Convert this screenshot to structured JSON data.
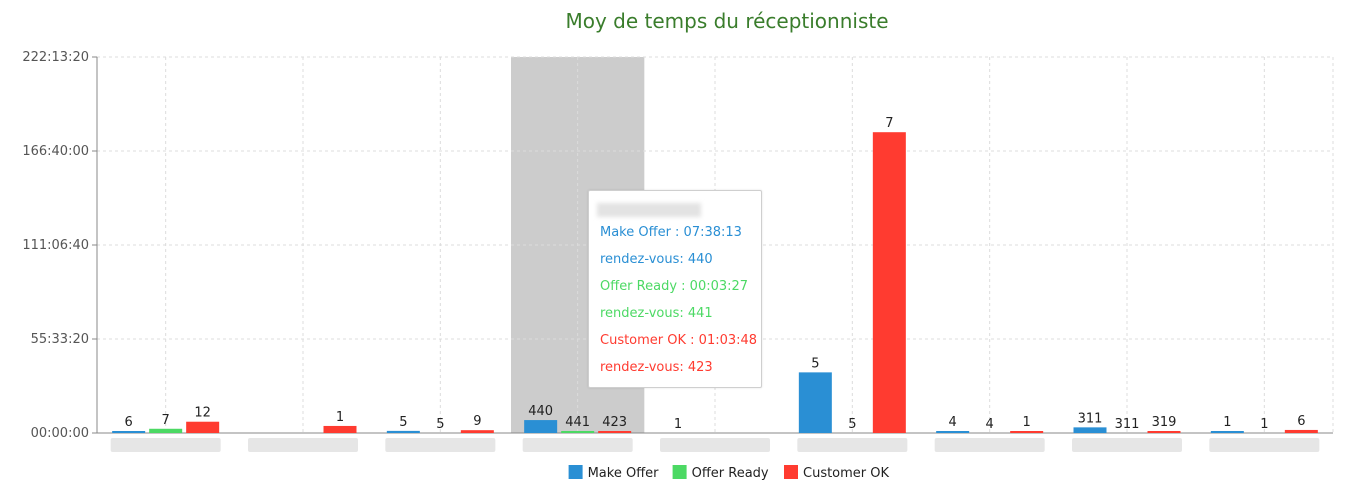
{
  "chart_data": {
    "type": "bar",
    "title": "Moy de temps du réceptionniste",
    "xlabel": "",
    "ylabel": "",
    "y_unit": "hh:mm:ss",
    "ylim_seconds": [
      0,
      800000
    ],
    "y_tick_seconds": [
      0,
      200000,
      400000,
      600000,
      800000
    ],
    "y_tick_labels": [
      "00:00:00",
      "55:33:20",
      "111:06:40",
      "166:40:00",
      "222:13:20"
    ],
    "grid": true,
    "legend_position": "bottom",
    "categories_redacted": true,
    "categories": [
      "",
      "",
      "",
      "",
      "",
      "",
      "",
      "",
      ""
    ],
    "highlighted_category_index": 3,
    "series": [
      {
        "name": "Make Offer",
        "color": "#2a8fd4",
        "values_seconds": [
          3600,
          0,
          4500,
          27493,
          0,
          129000,
          1500,
          12000,
          1200
        ],
        "data_labels": [
          "6",
          "",
          "5",
          "440",
          "1",
          "5",
          "4",
          "311",
          "1"
        ]
      },
      {
        "name": "Offer Ready",
        "color": "#4cd964",
        "values_seconds": [
          9000,
          0,
          0,
          207,
          0,
          0,
          0,
          0,
          0
        ],
        "data_labels": [
          "7",
          "",
          "5",
          "441",
          "",
          "5",
          "4",
          "311",
          "1"
        ]
      },
      {
        "name": "Customer OK",
        "color": "#ff3b30",
        "values_seconds": [
          24000,
          15000,
          6000,
          3828,
          0,
          640000,
          1800,
          3600,
          6500
        ],
        "data_labels": [
          "12",
          "1",
          "9",
          "423",
          "",
          "7",
          "1",
          "319",
          "6"
        ]
      }
    ]
  },
  "tooltip": {
    "line1": "Make Offer : 07:38:13",
    "line2": "rendez-vous: 440",
    "line3": "Offer Ready : 00:03:27",
    "line4": "rendez-vous: 441",
    "line5": "Customer OK : 01:03:48",
    "line6": "rendez-vous: 423",
    "color1": "#2a8fd4",
    "color2": "#4cd964",
    "color3": "#ff3b30"
  },
  "colors": {
    "title": "#3a7d2c",
    "axis_text": "#555555",
    "grid": "#dcdcdc",
    "highlight": "#cccccc"
  }
}
